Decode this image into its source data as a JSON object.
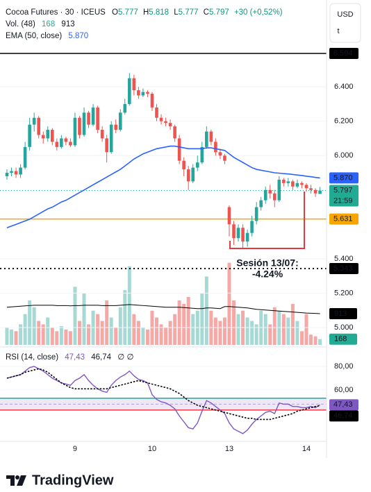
{
  "chart_data": [
    {
      "type": "candlestick",
      "title": "Cocoa Futures · 30 · ICEUS",
      "ohlc_labels": [
        "O",
        "H",
        "L",
        "C"
      ],
      "change_label": "+30 (+0,52%)",
      "currency": "USD",
      "unit_mark": "t",
      "countdown": "21:59",
      "categories": [
        null,
        null,
        null,
        null,
        null,
        null,
        null,
        null,
        null,
        null,
        null,
        null,
        null,
        null,
        null,
        "9",
        null,
        null,
        null,
        null,
        null,
        null,
        null,
        null,
        null,
        null,
        null,
        null,
        null,
        null,
        null,
        null,
        "10",
        null,
        null,
        null,
        null,
        null,
        null,
        null,
        null,
        null,
        null,
        null,
        null,
        null,
        null,
        null,
        null,
        "13",
        null,
        null,
        null,
        null,
        null,
        null,
        null,
        null,
        null,
        null,
        null,
        null,
        null,
        null,
        null,
        null,
        "14",
        null,
        null,
        null
      ],
      "open": [
        5.88,
        5.9,
        5.91,
        5.89,
        5.93,
        6.05,
        6.18,
        6.22,
        6.12,
        6.1,
        6.15,
        6.08,
        6.05,
        6.1,
        6.08,
        6.06,
        6.22,
        6.12,
        6.25,
        6.18,
        6.28,
        6.15,
        6.1,
        6.02,
        6.18,
        6.15,
        6.25,
        6.3,
        6.45,
        6.38,
        6.35,
        6.37,
        6.36,
        6.28,
        6.22,
        6.2,
        6.19,
        6.17,
        6.1,
        5.97,
        5.92,
        5.85,
        5.93,
        5.96,
        6.05,
        6.14,
        6.08,
        6.02,
        6.0,
        5.7,
        5.6,
        5.52,
        5.58,
        5.5,
        5.55,
        5.62,
        5.7,
        5.74,
        5.8,
        5.78,
        5.74,
        5.86,
        5.84,
        5.85,
        5.82,
        5.84,
        5.83,
        5.81,
        5.8,
        5.777
      ],
      "high": [
        5.92,
        5.93,
        5.93,
        5.95,
        6.08,
        6.22,
        6.25,
        6.23,
        6.14,
        6.17,
        6.16,
        6.1,
        6.12,
        6.11,
        6.1,
        6.25,
        6.23,
        6.28,
        6.26,
        6.3,
        6.29,
        6.17,
        6.12,
        6.2,
        6.21,
        6.27,
        6.33,
        6.48,
        6.47,
        6.4,
        6.39,
        6.38,
        6.37,
        6.3,
        6.24,
        6.22,
        6.21,
        6.18,
        6.12,
        5.99,
        5.94,
        5.95,
        6.0,
        6.08,
        6.17,
        6.15,
        6.1,
        6.04,
        6.01,
        5.71,
        5.62,
        5.6,
        5.6,
        5.57,
        5.65,
        5.73,
        5.76,
        5.82,
        5.83,
        5.8,
        5.88,
        5.87,
        5.87,
        5.86,
        5.86,
        5.85,
        5.84,
        5.83,
        5.81,
        5.818
      ],
      "low": [
        5.86,
        5.88,
        5.87,
        5.87,
        5.92,
        6.03,
        6.14,
        6.1,
        6.07,
        6.08,
        6.06,
        6.03,
        6.04,
        6.06,
        6.05,
        6.05,
        6.1,
        6.11,
        6.16,
        6.17,
        6.13,
        6.08,
        5.96,
        6.01,
        6.13,
        6.14,
        6.24,
        6.29,
        6.35,
        6.33,
        6.34,
        6.34,
        6.26,
        6.2,
        6.18,
        6.17,
        6.15,
        6.08,
        5.95,
        5.88,
        5.8,
        5.84,
        5.91,
        5.95,
        6.04,
        6.06,
        6.0,
        5.98,
        5.95,
        5.53,
        5.48,
        5.5,
        5.46,
        5.47,
        5.53,
        5.6,
        5.68,
        5.72,
        5.75,
        5.7,
        5.73,
        5.82,
        5.82,
        5.8,
        5.81,
        5.81,
        5.79,
        5.78,
        5.76,
        5.777
      ],
      "close": [
        5.9,
        5.91,
        5.89,
        5.93,
        6.05,
        6.18,
        6.22,
        6.12,
        6.1,
        6.15,
        6.08,
        6.05,
        6.1,
        6.08,
        6.06,
        6.22,
        6.12,
        6.25,
        6.18,
        6.28,
        6.15,
        6.1,
        6.02,
        6.18,
        6.15,
        6.25,
        6.3,
        6.45,
        6.38,
        6.35,
        6.37,
        6.36,
        6.28,
        6.22,
        6.2,
        6.19,
        6.17,
        6.1,
        5.97,
        5.92,
        5.85,
        5.93,
        5.96,
        6.05,
        6.14,
        6.08,
        6.02,
        6.0,
        5.97,
        5.6,
        5.52,
        5.58,
        5.5,
        5.55,
        5.62,
        5.7,
        5.74,
        5.8,
        5.78,
        5.74,
        5.86,
        5.84,
        5.85,
        5.82,
        5.84,
        5.83,
        5.81,
        5.8,
        5.78,
        5.797
      ],
      "up_color": "#26a69a",
      "down_color": "#ef5350",
      "last_color": "#22ab94",
      "ylim": [
        4.899,
        6.905
      ],
      "yticks": [
        {
          "value": 5,
          "label": "5.000"
        },
        {
          "value": 5.2,
          "label": "5.200"
        },
        {
          "value": 5.4,
          "label": "5.400"
        },
        {
          "value": 6,
          "label": "6.000"
        },
        {
          "value": 6.2,
          "label": "6.200"
        },
        {
          "value": 6.4,
          "label": "6.400"
        }
      ],
      "ema": {
        "name": "EMA (50, close)",
        "color": "#2962ff",
        "values": [
          5.58,
          5.59,
          5.6,
          5.61,
          5.62,
          5.63,
          5.645,
          5.66,
          5.675,
          5.69,
          5.7,
          5.715,
          5.73,
          5.74,
          5.755,
          5.77,
          5.785,
          5.8,
          5.815,
          5.83,
          5.845,
          5.86,
          5.875,
          5.89,
          5.905,
          5.92,
          5.94,
          5.96,
          5.98,
          5.995,
          6.01,
          6.02,
          6.03,
          6.04,
          6.045,
          6.05,
          6.055,
          6.055,
          6.05,
          6.045,
          6.04,
          6.04,
          6.04,
          6.04,
          6.045,
          6.045,
          6.04,
          6.035,
          6.03,
          6.01,
          5.99,
          5.975,
          5.96,
          5.945,
          5.93,
          5.92,
          5.915,
          5.91,
          5.905,
          5.9,
          5.898,
          5.895,
          5.893,
          5.89,
          5.887,
          5.884,
          5.88,
          5.877,
          5.873,
          5.87
        ],
        "value_labels": [
          null,
          null,
          null,
          null,
          null,
          null,
          null,
          null,
          null,
          null,
          null,
          null,
          null,
          null,
          null,
          null,
          null,
          null,
          null,
          null,
          null,
          null,
          null,
          null,
          null,
          null,
          null,
          null,
          null,
          null,
          null,
          null,
          null,
          null,
          null,
          null,
          null,
          null,
          null,
          null,
          null,
          null,
          null,
          null,
          null,
          null,
          null,
          null,
          null,
          null,
          null,
          null,
          null,
          null,
          null,
          null,
          null,
          null,
          null,
          null,
          null,
          null,
          null,
          null,
          null,
          null,
          null,
          null,
          null,
          "5.870"
        ]
      },
      "levels": [
        {
          "value": 6.594,
          "color": "#000000",
          "style": "solid"
        },
        {
          "value": 5.631,
          "color": "#f7a600",
          "style": "solid"
        },
        {
          "value": 5.343,
          "color": "#000000",
          "style": "dotted"
        }
      ],
      "annotation": {
        "lines": [
          "Sesión 13/07:",
          "-4.24%"
        ],
        "color": "#e0393e"
      }
    },
    {
      "type": "volume",
      "name": "Vol. (48)",
      "values": [
        500,
        450,
        400,
        600,
        900,
        1300,
        1100,
        700,
        600,
        800,
        500,
        400,
        550,
        450,
        400,
        1700,
        700,
        1500,
        600,
        1000,
        900,
        700,
        1300,
        800,
        500,
        1100,
        1600,
        2300,
        900,
        700,
        500,
        450,
        1000,
        800,
        600,
        500,
        700,
        900,
        1300,
        1200,
        1400,
        900,
        1000,
        1500,
        2000,
        1000,
        800,
        700,
        800,
        2400,
        1300,
        900,
        1000,
        800,
        700,
        600,
        1000,
        900,
        600,
        1100,
        1000,
        900,
        800,
        1200,
        700,
        400,
        900,
        300,
        250,
        168
      ],
      "up_color": "#a6d9d3",
      "down_color": "#f6a8a6",
      "last_color": "#22ab94",
      "ma": {
        "color": "#000000",
        "values": [
          1100,
          1110,
          1120,
          1130,
          1140,
          1150,
          1160,
          1160,
          1160,
          1160,
          1160,
          1150,
          1150,
          1150,
          1140,
          1150,
          1150,
          1160,
          1160,
          1160,
          1160,
          1150,
          1150,
          1150,
          1150,
          1160,
          1170,
          1180,
          1170,
          1160,
          1150,
          1140,
          1130,
          1120,
          1110,
          1100,
          1100,
          1100,
          1100,
          1090,
          1080,
          1070,
          1060,
          1060,
          1080,
          1080,
          1070,
          1060,
          1120,
          1120,
          1110,
          1100,
          1090,
          1080,
          1060,
          1040,
          1030,
          1020,
          1010,
          1000,
          990,
          980,
          970,
          960,
          950,
          940,
          930,
          925,
          920,
          913
        ]
      },
      "ylim": [
        0,
        2475
      ]
    },
    {
      "type": "rsi",
      "name": "RSI (14, close)",
      "extra_label": "∅ ∅",
      "series": [
        {
          "name": "RSI",
          "color": "#7e57c2",
          "style": "solid",
          "values": [
            70,
            71,
            72,
            73,
            76,
            79,
            80,
            78,
            76,
            73,
            70,
            68,
            66,
            65,
            64,
            68,
            70,
            73,
            68,
            64,
            61,
            59,
            58,
            64,
            68,
            71,
            73,
            76,
            72,
            69,
            68,
            66,
            56,
            52,
            50,
            49,
            47,
            44,
            38,
            33,
            28,
            27,
            32,
            42,
            51,
            49,
            46,
            43,
            40,
            32,
            27,
            25,
            23,
            26,
            31,
            35,
            38,
            41,
            42,
            40,
            49,
            48,
            48,
            46,
            46,
            45,
            45,
            46,
            45,
            47.43
          ],
          "value_labels": [
            null,
            null,
            null,
            null,
            null,
            null,
            null,
            null,
            null,
            null,
            null,
            null,
            null,
            null,
            null,
            null,
            null,
            null,
            null,
            null,
            null,
            null,
            null,
            null,
            null,
            null,
            null,
            null,
            null,
            null,
            null,
            null,
            null,
            null,
            null,
            null,
            null,
            null,
            null,
            null,
            null,
            null,
            null,
            null,
            null,
            null,
            null,
            null,
            null,
            null,
            null,
            null,
            null,
            null,
            null,
            null,
            null,
            null,
            null,
            null,
            null,
            null,
            null,
            null,
            null,
            null,
            null,
            null,
            null,
            "47,43"
          ]
        },
        {
          "name": "RSI MA",
          "color": "#000000",
          "style": "dotted",
          "values": [
            70,
            71,
            72,
            73,
            75,
            76,
            77,
            78,
            77,
            75,
            72,
            69,
            66,
            64,
            62,
            61,
            61,
            61,
            61,
            61,
            61,
            61,
            61,
            62,
            63,
            64,
            65,
            66,
            67,
            68,
            67,
            66,
            65,
            64,
            63,
            62,
            61,
            59,
            57,
            54,
            51,
            49,
            47,
            46,
            45,
            44,
            43,
            42,
            41,
            40,
            39,
            38,
            37,
            36,
            36,
            35,
            35,
            35,
            35,
            36,
            37,
            38,
            39,
            40,
            42,
            43,
            44,
            45,
            46,
            46.74
          ],
          "value_labels": [
            null,
            null,
            null,
            null,
            null,
            null,
            null,
            null,
            null,
            null,
            null,
            null,
            null,
            null,
            null,
            null,
            null,
            null,
            null,
            null,
            null,
            null,
            null,
            null,
            null,
            null,
            null,
            null,
            null,
            null,
            null,
            null,
            null,
            null,
            null,
            null,
            null,
            null,
            null,
            null,
            null,
            null,
            null,
            null,
            null,
            null,
            null,
            null,
            null,
            null,
            null,
            null,
            null,
            null,
            null,
            null,
            null,
            null,
            null,
            null,
            null,
            null,
            null,
            null,
            null,
            null,
            null,
            null,
            null,
            "46,74"
          ]
        }
      ],
      "bands": {
        "upper": 53,
        "middle": 48,
        "lower": 43,
        "upper_color": "#26a69a",
        "lower_color": "#f23645",
        "fill": "#ede7f6"
      },
      "ylim": [
        18.8,
        94.7
      ],
      "yticks": [
        {
          "value": 60,
          "label": "60,00"
        },
        {
          "value": 80,
          "label": "80,00"
        }
      ]
    }
  ],
  "brand": "TradingView"
}
